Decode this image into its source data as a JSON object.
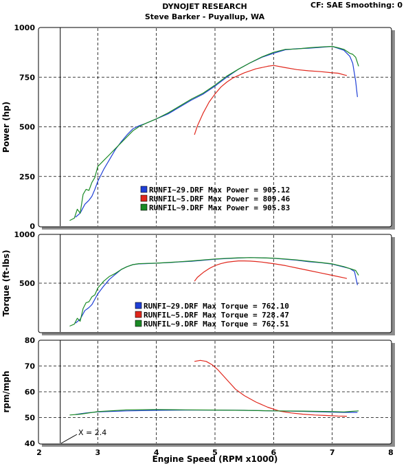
{
  "header": {
    "title": "DYNOJET RESEARCH",
    "subtitle": "Steve Barker - Puyallup, WA",
    "settings": "CF: SAE  Smoothing: 0"
  },
  "colors": {
    "run29": "#1f3fd6",
    "run5": "#e0261b",
    "run9": "#1a8a25"
  },
  "chart_data": [
    {
      "type": "line",
      "ylabel": "Power (hp)",
      "ylim": [
        0,
        1000
      ],
      "yticks": [
        "0",
        "250",
        "500",
        "750",
        "1000"
      ],
      "xlim": [
        2,
        8
      ],
      "grid": true,
      "legend": [
        "RUNFI~29.DRF Max Power = 905.12",
        "RUNFIL~5.DRF Max Power = 809.46",
        "RUNFIL~9.DRF Max Power = 905.83"
      ],
      "series": [
        {
          "name": "RUNFI~29.DRF",
          "color": "#1f3fd6",
          "x": [
            2.62,
            2.7,
            2.78,
            2.85,
            2.9,
            2.95,
            3.0,
            3.1,
            3.2,
            3.3,
            3.4,
            3.5,
            3.6,
            3.7,
            3.8,
            4.0,
            4.2,
            4.4,
            4.6,
            4.8,
            5.0,
            5.2,
            5.4,
            5.6,
            5.8,
            6.0,
            6.2,
            6.4,
            6.6,
            6.8,
            7.0,
            7.1,
            7.2,
            7.3,
            7.35,
            7.4,
            7.43
          ],
          "y": [
            45,
            65,
            110,
            130,
            150,
            185,
            225,
            285,
            335,
            385,
            425,
            460,
            490,
            505,
            515,
            540,
            565,
            600,
            635,
            665,
            705,
            750,
            790,
            822,
            850,
            870,
            888,
            893,
            896,
            900,
            905,
            895,
            885,
            855,
            820,
            730,
            650
          ]
        },
        {
          "name": "RUNFIL~5.DRF",
          "color": "#e0261b",
          "x": [
            4.65,
            4.7,
            4.8,
            4.9,
            5.0,
            5.1,
            5.2,
            5.3,
            5.5,
            5.7,
            5.9,
            6.0,
            6.2,
            6.4,
            6.6,
            6.8,
            7.0,
            7.1,
            7.2,
            7.25
          ],
          "y": [
            460,
            505,
            570,
            625,
            665,
            700,
            725,
            745,
            772,
            792,
            805,
            809,
            798,
            788,
            782,
            778,
            772,
            770,
            762,
            758
          ]
        },
        {
          "name": "RUNFIL~9.DRF",
          "color": "#1a8a25",
          "x": [
            2.52,
            2.6,
            2.65,
            2.7,
            2.75,
            2.8,
            2.85,
            2.9,
            2.95,
            3.0,
            3.1,
            3.2,
            3.3,
            3.4,
            3.5,
            3.6,
            3.7,
            3.8,
            4.0,
            4.2,
            4.4,
            4.6,
            4.8,
            5.0,
            5.2,
            5.4,
            5.6,
            5.8,
            6.0,
            6.2,
            6.4,
            6.6,
            6.8,
            7.0,
            7.1,
            7.2,
            7.3,
            7.35,
            7.4,
            7.45
          ],
          "y": [
            28,
            40,
            85,
            65,
            160,
            185,
            180,
            220,
            245,
            300,
            330,
            360,
            390,
            420,
            450,
            480,
            500,
            515,
            540,
            570,
            605,
            640,
            670,
            710,
            755,
            790,
            822,
            852,
            875,
            890,
            892,
            898,
            902,
            905,
            898,
            890,
            870,
            865,
            850,
            805
          ]
        }
      ]
    },
    {
      "type": "line",
      "ylabel": "Torque (ft-lbs)",
      "ylim": [
        0,
        1000
      ],
      "yticks": [
        "500",
        "1000"
      ],
      "xlim": [
        2,
        8
      ],
      "grid": true,
      "legend": [
        "RUNFI~29.DRF Max Torque = 762.10",
        "RUNFIL~5.DRF Max Torque = 728.47",
        "RUNFIL~9.DRF Max Torque = 762.51"
      ],
      "series": [
        {
          "name": "RUNFI~29.DRF",
          "color": "#1f3fd6",
          "x": [
            2.62,
            2.7,
            2.78,
            2.85,
            2.9,
            3.0,
            3.1,
            3.2,
            3.3,
            3.4,
            3.5,
            3.6,
            3.7,
            3.8,
            4.0,
            4.2,
            4.4,
            4.6,
            4.8,
            5.0,
            5.2,
            5.4,
            5.6,
            5.8,
            6.0,
            6.2,
            6.4,
            6.6,
            6.8,
            7.0,
            7.2,
            7.3,
            7.38,
            7.43
          ],
          "y": [
            90,
            130,
            220,
            250,
            280,
            390,
            470,
            540,
            590,
            640,
            670,
            690,
            698,
            700,
            705,
            710,
            718,
            725,
            735,
            745,
            752,
            758,
            762,
            760,
            755,
            745,
            735,
            720,
            710,
            695,
            665,
            650,
            620,
            480
          ]
        },
        {
          "name": "RUNFIL~5.DRF",
          "color": "#e0261b",
          "x": [
            4.65,
            4.7,
            4.8,
            4.9,
            5.0,
            5.1,
            5.2,
            5.3,
            5.4,
            5.5,
            5.6,
            5.7,
            5.8,
            5.9,
            6.0,
            6.2,
            6.4,
            6.6,
            6.8,
            7.0,
            7.2,
            7.25
          ],
          "y": [
            520,
            560,
            610,
            650,
            680,
            700,
            715,
            722,
            728,
            728,
            726,
            722,
            716,
            708,
            700,
            680,
            655,
            630,
            605,
            580,
            555,
            548
          ]
        },
        {
          "name": "RUNFIL~9.DRF",
          "color": "#1a8a25",
          "x": [
            2.52,
            2.6,
            2.65,
            2.7,
            2.75,
            2.8,
            2.85,
            2.9,
            2.95,
            3.0,
            3.1,
            3.2,
            3.3,
            3.4,
            3.5,
            3.6,
            3.7,
            3.8,
            4.0,
            4.2,
            4.4,
            4.6,
            4.8,
            5.0,
            5.2,
            5.4,
            5.6,
            5.8,
            6.0,
            6.2,
            6.4,
            6.6,
            6.8,
            7.0,
            7.2,
            7.3,
            7.4,
            7.45
          ],
          "y": [
            60,
            80,
            140,
            110,
            240,
            300,
            310,
            360,
            380,
            450,
            520,
            570,
            600,
            640,
            670,
            690,
            700,
            702,
            705,
            712,
            720,
            728,
            738,
            748,
            755,
            760,
            762,
            760,
            756,
            748,
            738,
            725,
            712,
            698,
            670,
            650,
            630,
            580
          ]
        }
      ]
    },
    {
      "type": "line",
      "ylabel": "rpm/mph",
      "ylim": [
        40,
        80
      ],
      "yticks": [
        "40",
        "50",
        "60",
        "70",
        "80"
      ],
      "xlim": [
        2,
        8
      ],
      "xticks": [
        "2",
        "3",
        "4",
        "5",
        "6",
        "7",
        "8"
      ],
      "xlabel": "Engine Speed (RPM x1000)",
      "grid": true,
      "annotation": "X = 2.4",
      "series": [
        {
          "name": "RUNFI~29.DRF",
          "color": "#1f3fd6",
          "x": [
            2.62,
            2.8,
            3.0,
            3.5,
            4.0,
            4.5,
            5.0,
            5.5,
            6.0,
            6.5,
            7.0,
            7.2,
            7.43
          ],
          "y": [
            51.2,
            51.8,
            52.2,
            52.6,
            52.8,
            52.9,
            52.9,
            52.8,
            52.6,
            52.4,
            52.1,
            52.0,
            52.0
          ]
        },
        {
          "name": "RUNFIL~5.DRF",
          "color": "#e0261b",
          "x": [
            4.65,
            4.75,
            4.85,
            4.95,
            5.05,
            5.15,
            5.25,
            5.35,
            5.5,
            5.7,
            5.9,
            6.1,
            6.3,
            6.5,
            6.7,
            6.9,
            7.1,
            7.25
          ],
          "y": [
            71.8,
            72.2,
            71.8,
            70.5,
            68.5,
            66.0,
            63.5,
            61.0,
            58.5,
            56.0,
            54.0,
            52.5,
            51.8,
            51.3,
            51.0,
            50.8,
            50.6,
            50.5
          ]
        },
        {
          "name": "RUNFIL~9.DRF",
          "color": "#1a8a25",
          "x": [
            2.52,
            2.7,
            3.0,
            3.5,
            4.0,
            4.5,
            5.0,
            5.5,
            6.0,
            6.5,
            7.0,
            7.2,
            7.45
          ],
          "y": [
            51.0,
            51.3,
            52.3,
            53.0,
            53.1,
            53.0,
            52.9,
            52.8,
            52.6,
            52.5,
            52.3,
            52.2,
            52.6
          ]
        }
      ]
    }
  ]
}
